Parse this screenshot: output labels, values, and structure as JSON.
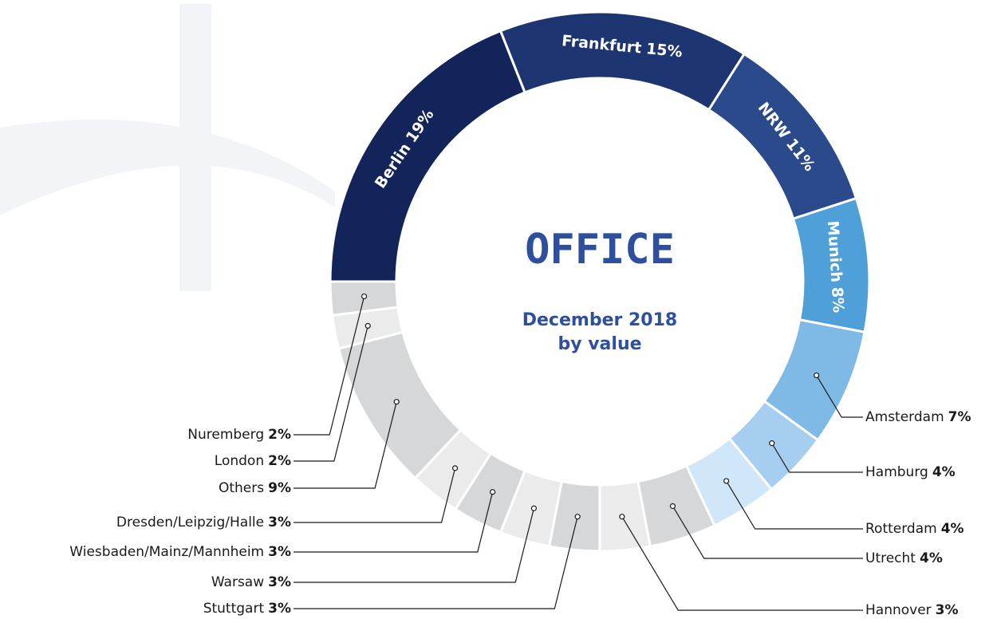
{
  "chart_data": {
    "type": "donut",
    "title": "OFFICE",
    "subtitle": [
      "December 2018",
      "by value"
    ],
    "categories": [
      "Berlin",
      "Frankfurt",
      "NRW",
      "Munich",
      "Amsterdam",
      "Hamburg",
      "Rotterdam",
      "Utrecht",
      "Hannover",
      "Stuttgart",
      "Warsaw",
      "Wiesbaden/Mainz/Mannheim",
      "Dresden/Leipzig/Halle",
      "Others",
      "London",
      "Nuremberg"
    ],
    "values": [
      19,
      15,
      11,
      8,
      7,
      4,
      4,
      4,
      3,
      3,
      3,
      3,
      3,
      9,
      2,
      2
    ],
    "value_labels": [
      "19%",
      "15%",
      "11%",
      "8%",
      "7%",
      "4%",
      "4%",
      "4%",
      "3%",
      "3%",
      "3%",
      "3%",
      "3%",
      "9%",
      "2%",
      "2%"
    ],
    "colors": [
      "#13245a",
      "#1d3570",
      "#2b4a8b",
      "#4f9fd9",
      "#7fb9e5",
      "#a5cef0",
      "#d0e6f9",
      "#d6d7d9",
      "#ebebec",
      "#d6d7d9",
      "#ebebec",
      "#d6d7d9",
      "#ebebec",
      "#d6d7d9",
      "#ebebec",
      "#d6d7d9"
    ]
  }
}
